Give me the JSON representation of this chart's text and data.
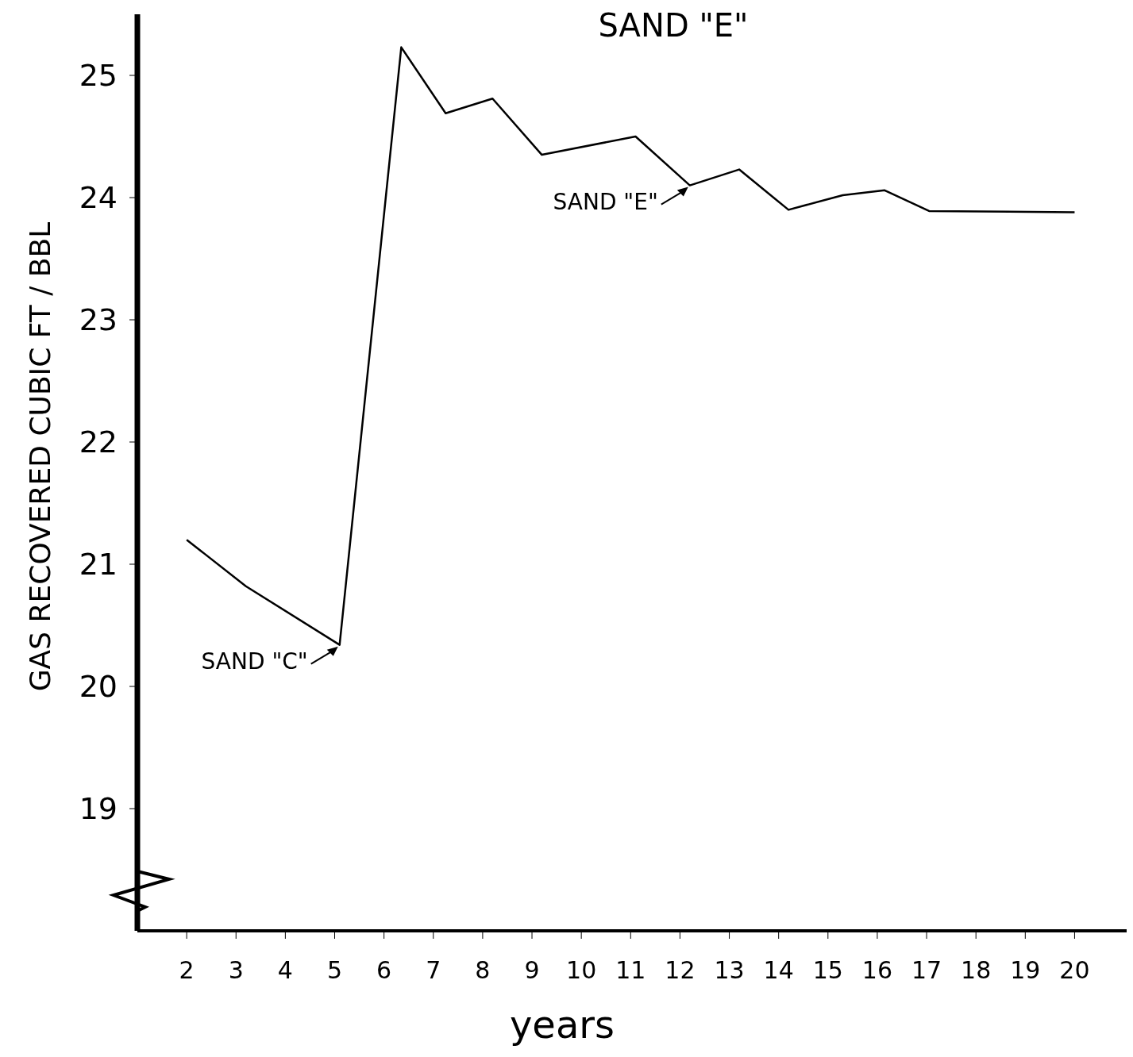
{
  "chart_data": {
    "type": "line",
    "title": "SAND \"E\"",
    "xlabel": "years",
    "ylabel": "GAS RECOVERED CUBIC FT / BBL",
    "x": [
      2,
      3.2,
      5.1,
      6.35,
      7.25,
      8.2,
      9.2,
      11.1,
      12.2,
      13.2,
      14.2,
      15.3,
      16.15,
      17.05,
      20
    ],
    "series": [
      {
        "color": "#000000",
        "values": [
          21.2,
          20.82,
          20.34,
          25.23,
          24.69,
          24.81,
          24.35,
          24.5,
          24.1,
          24.23,
          23.9,
          24.02,
          24.06,
          23.89,
          23.88
        ]
      }
    ],
    "xlim": [
      1,
      21.2
    ],
    "xticks": [
      2,
      3,
      4,
      5,
      6,
      7,
      8,
      9,
      10,
      11,
      12,
      13,
      14,
      15,
      16,
      17,
      18,
      19,
      20
    ],
    "ylim": [
      18,
      25.5
    ],
    "yticks": [
      19,
      20,
      21,
      22,
      23,
      24,
      25
    ],
    "annotations": [
      {
        "text": "SAND \"E\"",
        "x": 12.2,
        "y": 24.1
      },
      {
        "text": "SAND \"C\"",
        "x": 5.1,
        "y": 20.34
      }
    ],
    "grid": false,
    "marker": "none",
    "line_style": "solid"
  }
}
